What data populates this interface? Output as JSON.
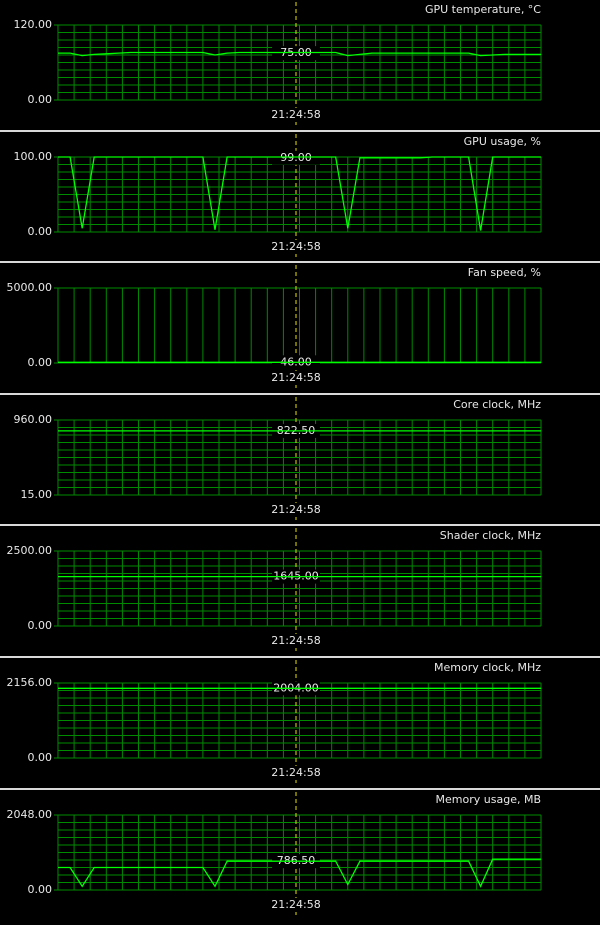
{
  "chart_data": [
    {
      "type": "line",
      "title": "GPU temperature, °C",
      "color": "#00ff00",
      "grid_rows": 10,
      "ylim": [
        0,
        120
      ],
      "yticks": [
        {
          "value": 0,
          "label": "0.00"
        },
        {
          "value": 120,
          "label": "120.00"
        }
      ],
      "values": [
        75,
        75,
        71,
        73,
        74,
        75,
        76,
        76,
        76,
        76,
        76,
        76,
        76,
        72,
        75,
        76,
        76,
        76,
        76,
        76,
        76,
        76,
        76,
        76,
        71,
        73,
        75,
        75,
        75,
        75,
        75,
        75,
        75,
        75,
        75,
        71,
        72,
        73,
        73,
        73,
        73
      ],
      "cursor": {
        "time": "21:24:58",
        "value": {
          "value": 75,
          "label": "75.00"
        }
      }
    },
    {
      "type": "line",
      "title": "GPU usage, %",
      "color": "#00ff00",
      "grid_rows": 10,
      "ylim": [
        0,
        100
      ],
      "yticks": [
        {
          "value": 0,
          "label": "0.00"
        },
        {
          "value": 100,
          "label": "100.00"
        }
      ],
      "values": [
        100,
        100,
        5,
        100,
        100,
        100,
        100,
        100,
        100,
        100,
        100,
        100,
        100,
        3,
        100,
        100,
        100,
        100,
        100,
        100,
        100,
        100,
        100,
        100,
        5,
        99,
        99,
        99,
        99,
        99,
        99,
        100,
        100,
        100,
        100,
        2,
        100,
        100,
        100,
        100,
        100
      ],
      "cursor": {
        "time": "21:24:58",
        "value": {
          "value": 99,
          "label": "99.00"
        }
      }
    },
    {
      "type": "line",
      "title": "Fan speed, %",
      "color": "#00ff00",
      "grid_rows": 0,
      "ylim": [
        0,
        5000
      ],
      "yticks": [
        {
          "value": 0,
          "label": "0.00"
        },
        {
          "value": 5000,
          "label": "5000.00"
        }
      ],
      "values": [
        46,
        46,
        46,
        46,
        46,
        46,
        46,
        46,
        46,
        46,
        46,
        46,
        46,
        46,
        46,
        46,
        46,
        46,
        46,
        46,
        46,
        46,
        46,
        46,
        46,
        46,
        46,
        46,
        46,
        46,
        46,
        46,
        46,
        46,
        46,
        46,
        46,
        46,
        46,
        46,
        46
      ],
      "cursor": {
        "time": "21:24:58",
        "value": {
          "value": 46,
          "label": "46.00"
        }
      }
    },
    {
      "type": "line",
      "title": "Core clock, MHz",
      "color": "#00ff00",
      "grid_rows": 10,
      "ylim": [
        15,
        960
      ],
      "yticks": [
        {
          "value": 15,
          "label": "15.00"
        },
        {
          "value": 960,
          "label": "960.00"
        }
      ],
      "values": [
        822.5,
        822.5,
        822.5,
        822.5,
        822.5,
        822.5,
        822.5,
        822.5,
        822.5,
        822.5,
        822.5,
        822.5,
        822.5,
        822.5,
        822.5,
        822.5,
        822.5,
        822.5,
        822.5,
        822.5,
        822.5,
        822.5,
        822.5,
        822.5,
        822.5,
        822.5,
        822.5,
        822.5,
        822.5,
        822.5,
        822.5,
        822.5,
        822.5,
        822.5,
        822.5,
        822.5,
        822.5,
        822.5,
        822.5,
        822.5,
        822.5
      ],
      "cursor": {
        "time": "21:24:58",
        "value": {
          "value": 822.5,
          "label": "822.50"
        }
      }
    },
    {
      "type": "line",
      "title": "Shader clock, MHz",
      "color": "#00ff00",
      "grid_rows": 10,
      "ylim": [
        0,
        2500
      ],
      "yticks": [
        {
          "value": 0,
          "label": "0.00"
        },
        {
          "value": 2500,
          "label": "2500.00"
        }
      ],
      "values": [
        1645,
        1645,
        1645,
        1645,
        1645,
        1645,
        1645,
        1645,
        1645,
        1645,
        1645,
        1645,
        1645,
        1645,
        1645,
        1645,
        1645,
        1645,
        1645,
        1645,
        1645,
        1645,
        1645,
        1645,
        1645,
        1645,
        1645,
        1645,
        1645,
        1645,
        1645,
        1645,
        1645,
        1645,
        1645,
        1645,
        1645,
        1645,
        1645,
        1645,
        1645
      ],
      "cursor": {
        "time": "21:24:58",
        "value": {
          "value": 1645,
          "label": "1645.00"
        }
      }
    },
    {
      "type": "line",
      "title": "Memory clock, MHz",
      "color": "#00ff00",
      "grid_rows": 10,
      "ylim": [
        0,
        2156
      ],
      "yticks": [
        {
          "value": 0,
          "label": "0.00"
        },
        {
          "value": 2156,
          "label": "2156.00"
        }
      ],
      "values": [
        2004,
        2004,
        2004,
        2004,
        2004,
        2004,
        2004,
        2004,
        2004,
        2004,
        2004,
        2004,
        2004,
        2004,
        2004,
        2004,
        2004,
        2004,
        2004,
        2004,
        2004,
        2004,
        2004,
        2004,
        2004,
        2004,
        2004,
        2004,
        2004,
        2004,
        2004,
        2004,
        2004,
        2004,
        2004,
        2004,
        2004,
        2004,
        2004,
        2004,
        2004
      ],
      "cursor": {
        "time": "21:24:58",
        "value": {
          "value": 2004,
          "label": "2004.00"
        }
      }
    },
    {
      "type": "line",
      "title": "Memory usage, MB",
      "color": "#00ff00",
      "grid_rows": 10,
      "ylim": [
        0,
        2048
      ],
      "yticks": [
        {
          "value": 0,
          "label": "0.00"
        },
        {
          "value": 2048,
          "label": "2048.00"
        }
      ],
      "values": [
        614,
        614,
        100,
        614,
        614,
        614,
        614,
        614,
        614,
        614,
        614,
        614,
        614,
        100,
        786.5,
        786.5,
        786.5,
        786.5,
        786.5,
        786.5,
        786.5,
        786.5,
        786.5,
        786.5,
        150,
        786.5,
        786.5,
        786.5,
        786.5,
        786.5,
        786.5,
        786.5,
        786.5,
        786.5,
        786.5,
        100,
        840,
        840,
        840,
        840,
        840
      ],
      "cursor": {
        "time": "21:24:58",
        "value": {
          "value": 786.5,
          "label": "786.50"
        }
      }
    }
  ]
}
